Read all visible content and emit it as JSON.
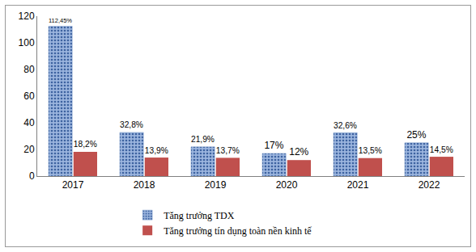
{
  "chart_data": {
    "type": "bar",
    "categories": [
      "2017",
      "2018",
      "2019",
      "2020",
      "2021",
      "2022"
    ],
    "series": [
      {
        "name": "Tăng trưởng TDX",
        "color": "#9bb5de",
        "values": [
          112.45,
          32.8,
          21.9,
          17,
          32.6,
          25
        ],
        "value_labels": [
          "112,45%",
          "32,8%",
          "21,9%",
          "17%",
          "32,6%",
          "25%"
        ]
      },
      {
        "name": "Tăng trưởng tín dụng toàn nền kinh tế",
        "color": "#c0504d",
        "values": [
          18.2,
          13.9,
          13.7,
          12,
          13.5,
          14.5
        ],
        "value_labels": [
          "18,2%",
          "13,9%",
          "13,7%",
          "12%",
          "13,5%",
          "14,5%"
        ]
      }
    ],
    "ylim": [
      0,
      120
    ],
    "yticks": [
      0,
      20,
      40,
      60,
      80,
      100,
      120
    ],
    "grid": false,
    "legend": "bottom",
    "data_labels": true
  }
}
